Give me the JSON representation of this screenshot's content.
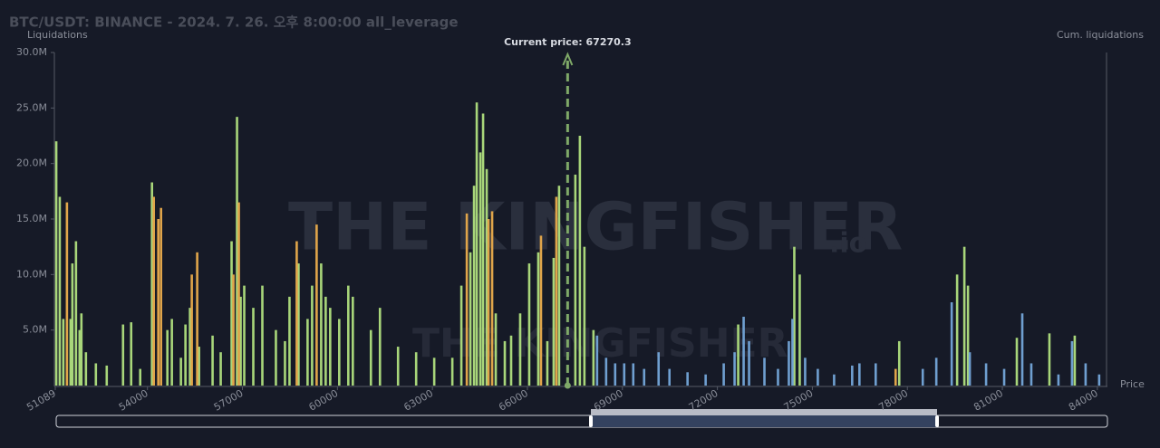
{
  "chart_data": {
    "type": "bar",
    "title": "BTC/USDT: BINANCE - 2024. 7. 26. 오후 8:00:00 all_leverage",
    "y_label": "Liquidations",
    "y2_label": "Cum. liquidations",
    "x_label": "Price",
    "watermark": [
      "THE KINGFISHER",
      ".io"
    ],
    "current_price": {
      "value": 67270.3,
      "label": "Current price: 67270.3"
    },
    "xlim": [
      51089,
      84290
    ],
    "xticks": [
      51089,
      54000,
      57000,
      60000,
      63000,
      66000,
      69000,
      72000,
      75000,
      78000,
      81000,
      84000
    ],
    "ylim": [
      0,
      30
    ],
    "yticks": [
      {
        "value": 5,
        "label": "5.0M"
      },
      {
        "value": 10,
        "label": "10.0M"
      },
      {
        "value": 15,
        "label": "15.0M"
      },
      {
        "value": 20,
        "label": "20.0M"
      },
      {
        "value": 25,
        "label": "25.0M"
      },
      {
        "value": 30,
        "label": "30.0M"
      }
    ],
    "series": [
      {
        "color": "#a8d67a",
        "x": [
          51120,
          51230,
          51343,
          51572,
          51629,
          51743,
          51857,
          51914,
          52057,
          52371,
          52714,
          53229,
          53486,
          53771,
          54143,
          54629,
          54771,
          55057,
          55200,
          55343,
          55629,
          56057,
          56314,
          56657,
          56829,
          56943,
          57057,
          57343,
          57629,
          58057,
          58343,
          58486,
          58771,
          59057,
          59200,
          59486,
          59629,
          59771,
          60057,
          60343,
          60486,
          61057,
          61343,
          61914,
          62486,
          63057,
          63629,
          63914,
          64200,
          64314,
          64400,
          64514,
          64600,
          64714,
          65000,
          65286,
          65486,
          65771,
          66057,
          66343,
          66629,
          66829,
          67000,
          67514,
          67657,
          67800,
          68086,
          72657,
          74429,
          74600,
          77743,
          79571,
          79800,
          79914,
          81457,
          82486,
          83286
        ],
        "values": [
          22,
          17,
          6,
          6,
          11,
          13,
          5,
          6.5,
          3,
          2,
          1.8,
          5.5,
          5.7,
          1.5,
          18.3,
          5,
          6,
          2.5,
          5.5,
          7,
          3.5,
          4.5,
          3,
          13,
          24.2,
          8,
          9,
          7,
          9,
          5,
          4,
          8,
          11,
          6,
          9,
          11,
          8,
          7,
          6,
          9,
          8,
          5,
          7,
          3.5,
          3,
          2.5,
          2.5,
          9,
          12,
          18,
          25.5,
          21,
          24.5,
          19.5,
          6.5,
          4,
          4.5,
          6.5,
          11,
          12,
          4,
          11.5,
          18,
          19,
          22.5,
          12.5,
          5,
          5.5,
          12.5,
          10,
          4,
          10,
          12.5,
          9,
          4.3,
          4.7,
          4.5
        ]
      },
      {
        "color": "#e0a54a",
        "x": [
          51457,
          54200,
          54343,
          54429,
          55400,
          55571,
          56714,
          56886,
          58714,
          59343,
          64086,
          64771,
          64886,
          66429,
          66914,
          77629
        ],
        "values": [
          16.5,
          17,
          15,
          16,
          10,
          12,
          10,
          16.5,
          13,
          14.5,
          15.5,
          15,
          15.7,
          13.5,
          17,
          1.5
        ]
      },
      {
        "color": "#6f9fd0",
        "x": [
          68200,
          68486,
          68771,
          69057,
          69343,
          69686,
          70143,
          70486,
          71057,
          71629,
          72200,
          72543,
          72829,
          73000,
          73486,
          73914,
          74257,
          74371,
          74771,
          75171,
          75686,
          76257,
          76486,
          77000,
          78486,
          78914,
          79400,
          79971,
          80486,
          81057,
          81629,
          81914,
          82771,
          83200,
          83629,
          84057
        ],
        "values": [
          4.5,
          2.5,
          2,
          2,
          2,
          1.5,
          3,
          1.5,
          1.2,
          1,
          2,
          3,
          6.2,
          4,
          2.5,
          1.5,
          4,
          6,
          2.5,
          1.5,
          1,
          1.8,
          2,
          2,
          1.5,
          2.5,
          7.5,
          3,
          2,
          1.5,
          6.5,
          2,
          1,
          4,
          2,
          1
        ]
      }
    ]
  }
}
